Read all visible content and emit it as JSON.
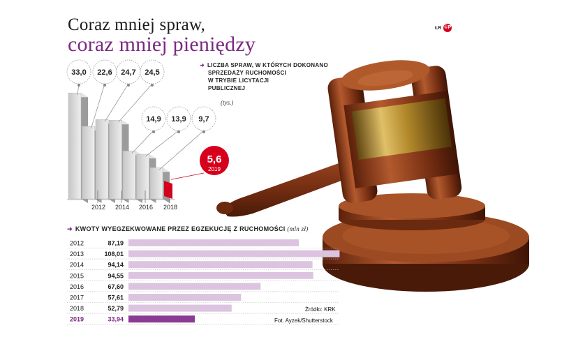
{
  "title": {
    "line1": "Coraz mniej spraw,",
    "line2": "coraz mniej pieniędzy"
  },
  "logo": {
    "initials": "ŁR",
    "badge": "©P"
  },
  "colors": {
    "accent": "#7a2a82",
    "bar_light": "#dcc4e0",
    "bar_highlight": "#8a3b93",
    "red": "#d6001c"
  },
  "cases": {
    "label": "Liczba spraw, w których dokonano sprzedaży ruchomości w trybie licytacji publicznej",
    "label_lines": [
      "Liczba spraw, w których dokonano",
      "sprzedaży ruchomości",
      "w trybie licytacji",
      "publicznej"
    ],
    "unit": "(tys.)"
  },
  "amounts": {
    "label": "Kwoty wyegzekwowane przez egzekucję z ruchomości",
    "unit": "(mln zł)"
  },
  "source": {
    "line1": "Źródło: KRK",
    "line2": "Fot. Ayzek/Shutterstock"
  },
  "chart_data": [
    {
      "type": "bar",
      "title": "Liczba spraw, w których dokonano sprzedaży ruchomości w trybie licytacji publicznej",
      "unit": "(tys.)",
      "categories": [
        "2012",
        "2013",
        "2014",
        "2015",
        "2016",
        "2017",
        "2018",
        "2019"
      ],
      "values": [
        33.0,
        22.6,
        24.7,
        24.5,
        14.9,
        13.9,
        9.7,
        5.6
      ],
      "value_labels": [
        "33,0",
        "22,6",
        "24,7",
        "24,5",
        "14,9",
        "13,9",
        "9,7",
        "5,6"
      ],
      "tick_labels": [
        "2012",
        "2014",
        "2016",
        "2018"
      ],
      "highlight": {
        "index": 7,
        "label": "2019",
        "color": "#d6001c"
      }
    },
    {
      "type": "bar",
      "orientation": "horizontal",
      "title": "Kwoty wyegzekwowane przez egzekucję z ruchomości",
      "unit": "(mln zł)",
      "categories": [
        "2012",
        "2013",
        "2014",
        "2015",
        "2016",
        "2017",
        "2018",
        "2019"
      ],
      "values": [
        87.19,
        108.01,
        94.14,
        94.55,
        67.6,
        57.61,
        52.79,
        33.94
      ],
      "value_labels": [
        "87,19",
        "108,01",
        "94,14",
        "94,55",
        "67,60",
        "57,61",
        "52,79",
        "33,94"
      ],
      "highlight": {
        "index": 7,
        "color": "#8a3b93"
      }
    }
  ]
}
